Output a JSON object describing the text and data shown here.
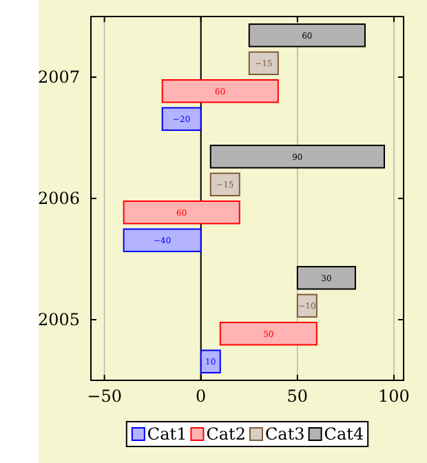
{
  "chart_data": {
    "type": "bar",
    "orientation": "horizontal",
    "categories": [
      "2007",
      "2006",
      "2005"
    ],
    "series": [
      {
        "name": "Cat1",
        "color": "#0000ff",
        "values": [
          -20,
          -40,
          10
        ],
        "base": [
          0,
          0,
          0
        ]
      },
      {
        "name": "Cat2",
        "color": "#ff0000",
        "values": [
          60,
          60,
          50
        ],
        "base": [
          -20,
          -40,
          10
        ]
      },
      {
        "name": "Cat3",
        "color": "#7f5a3a",
        "values": [
          -15,
          -15,
          -10
        ],
        "base": [
          40,
          20,
          60
        ]
      },
      {
        "name": "Cat4",
        "color": "#000000",
        "values": [
          60,
          90,
          30
        ],
        "base": [
          25,
          5,
          50
        ]
      }
    ],
    "xlim": [
      -57,
      105
    ],
    "xticks": [
      -50,
      0,
      50,
      100
    ],
    "grid": "x",
    "legend": "bottom",
    "data_labels": true,
    "ref_lines": [
      {
        "axis": "x",
        "value": 0,
        "color": "#000000"
      }
    ]
  }
}
